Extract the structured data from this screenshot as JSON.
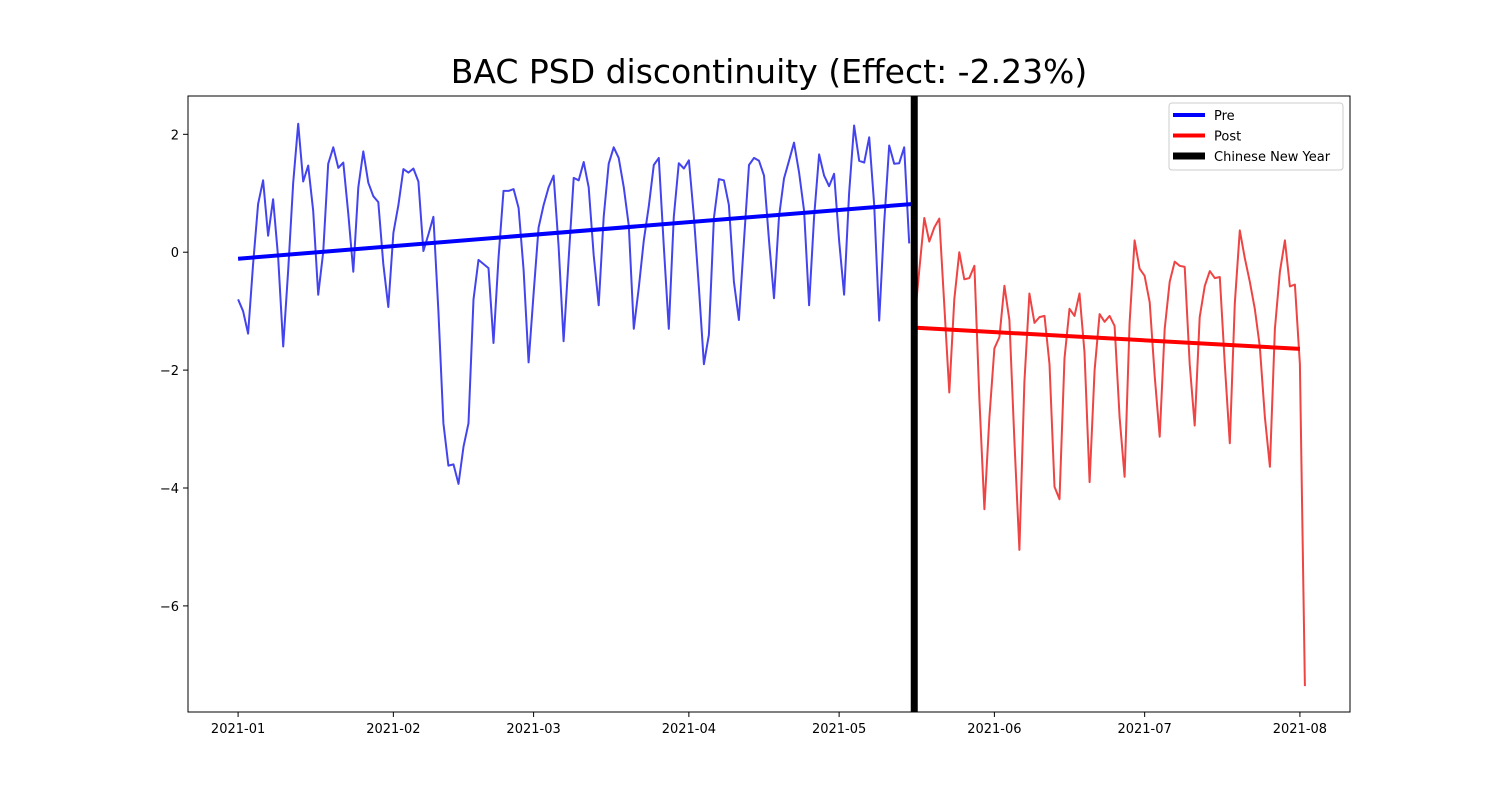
{
  "chart_data": {
    "type": "line",
    "title": "BAC PSD discontinuity (Effect: -2.23%)",
    "xlabel": "",
    "ylabel": "",
    "x_range": [
      "2020-12-22",
      "2021-08-11"
    ],
    "ylim": [
      -7.8,
      2.65
    ],
    "x_tick_labels": [
      "2021-01",
      "2021-02",
      "2021-03",
      "2021-04",
      "2021-05",
      "2021-06",
      "2021-07",
      "2021-08"
    ],
    "x_ticks": [
      "2021-01-01",
      "2021-02-01",
      "2021-03-01",
      "2021-04-01",
      "2021-05-01",
      "2021-06-01",
      "2021-07-01",
      "2021-08-01"
    ],
    "y_ticks": [
      2,
      0,
      -2,
      -4,
      -6
    ],
    "y_tick_labels": [
      "2",
      "0",
      "−2",
      "−4",
      "−6"
    ],
    "grid": false,
    "legend_position": "top-right",
    "legend": [
      {
        "label": "Pre",
        "color": "#0000ff"
      },
      {
        "label": "Post",
        "color": "#ff0000"
      },
      {
        "label": "Chinese New Year",
        "color": "#000000"
      }
    ],
    "cutoff_date": "2021-05-16",
    "series": [
      {
        "name": "Pre",
        "color": "#4444ee",
        "start_date": "2021-01-01",
        "step_days": 1,
        "values": [
          -0.8,
          -1.0,
          -1.38,
          -0.2,
          0.82,
          1.22,
          0.28,
          0.9,
          -0.1,
          -1.6,
          -0.3,
          1.18,
          2.18,
          1.2,
          1.47,
          0.7,
          -0.72,
          0.0,
          1.5,
          1.78,
          1.43,
          1.52,
          0.65,
          -0.33,
          1.1,
          1.71,
          1.18,
          0.95,
          0.85,
          -0.2,
          -0.93,
          0.33,
          0.8,
          1.41,
          1.35,
          1.42,
          1.2,
          0.02,
          0.3,
          0.6,
          -1.0,
          -2.9,
          -3.62,
          -3.6,
          -3.93,
          -3.3,
          -2.9,
          -0.8,
          -0.13,
          -0.2,
          -0.27,
          -1.54,
          -0.1,
          1.04,
          1.04,
          1.07,
          0.75,
          -0.3,
          -1.87,
          -0.7,
          0.42,
          0.8,
          1.1,
          1.3,
          0.1,
          -1.51,
          -0.1,
          1.26,
          1.22,
          1.53,
          1.1,
          -0.05,
          -0.9,
          0.6,
          1.5,
          1.78,
          1.6,
          1.1,
          0.45,
          -1.3,
          -0.6,
          0.2,
          0.78,
          1.48,
          1.6,
          0.1,
          -1.3,
          0.6,
          1.51,
          1.42,
          1.56,
          0.6,
          -0.6,
          -1.9,
          -1.4,
          0.58,
          1.24,
          1.22,
          0.8,
          -0.5,
          -1.15,
          0.2,
          1.48,
          1.6,
          1.55,
          1.3,
          0.2,
          -0.78,
          0.6,
          1.25,
          1.55,
          1.86,
          1.35,
          0.7,
          -0.9,
          0.6,
          1.66,
          1.3,
          1.12,
          1.33,
          0.2,
          -0.72,
          1.0,
          2.15,
          1.55,
          1.52,
          1.95,
          0.8,
          -1.16,
          0.5,
          1.81,
          1.5,
          1.51,
          1.78,
          0.15
        ]
      },
      {
        "name": "Post",
        "color": "#ee4444",
        "start_date": "2021-05-16",
        "step_days": 1,
        "values": [
          -1.2,
          -0.3,
          0.58,
          0.18,
          0.42,
          0.57,
          -0.9,
          -2.38,
          -0.8,
          0.0,
          -0.46,
          -0.44,
          -0.23,
          -2.5,
          -4.36,
          -2.8,
          -1.63,
          -1.44,
          -0.57,
          -1.15,
          -3.2,
          -5.05,
          -2.2,
          -0.7,
          -1.2,
          -1.1,
          -1.08,
          -1.9,
          -3.98,
          -4.19,
          -1.8,
          -0.96,
          -1.08,
          -0.7,
          -1.7,
          -3.9,
          -2.0,
          -1.05,
          -1.18,
          -1.08,
          -1.25,
          -2.8,
          -3.81,
          -1.2,
          0.2,
          -0.28,
          -0.4,
          -0.85,
          -2.1,
          -3.13,
          -1.3,
          -0.5,
          -0.16,
          -0.23,
          -0.25,
          -1.9,
          -2.94,
          -1.1,
          -0.57,
          -0.32,
          -0.44,
          -0.42,
          -1.9,
          -3.24,
          -0.87,
          0.37,
          -0.1,
          -0.5,
          -0.96,
          -1.6,
          -2.8,
          -3.64,
          -1.3,
          -0.33,
          0.2,
          -0.58,
          -0.55,
          -1.9,
          -7.36
        ]
      }
    ],
    "trend_lines": [
      {
        "name": "Pre",
        "color": "#0000ff",
        "start": [
          "2021-01-01",
          -0.11
        ],
        "end": [
          "2021-05-16",
          0.82
        ]
      },
      {
        "name": "Post",
        "color": "#ff0000",
        "start": [
          "2021-05-16",
          -1.28
        ],
        "end": [
          "2021-08-01",
          -1.64
        ]
      }
    ]
  }
}
